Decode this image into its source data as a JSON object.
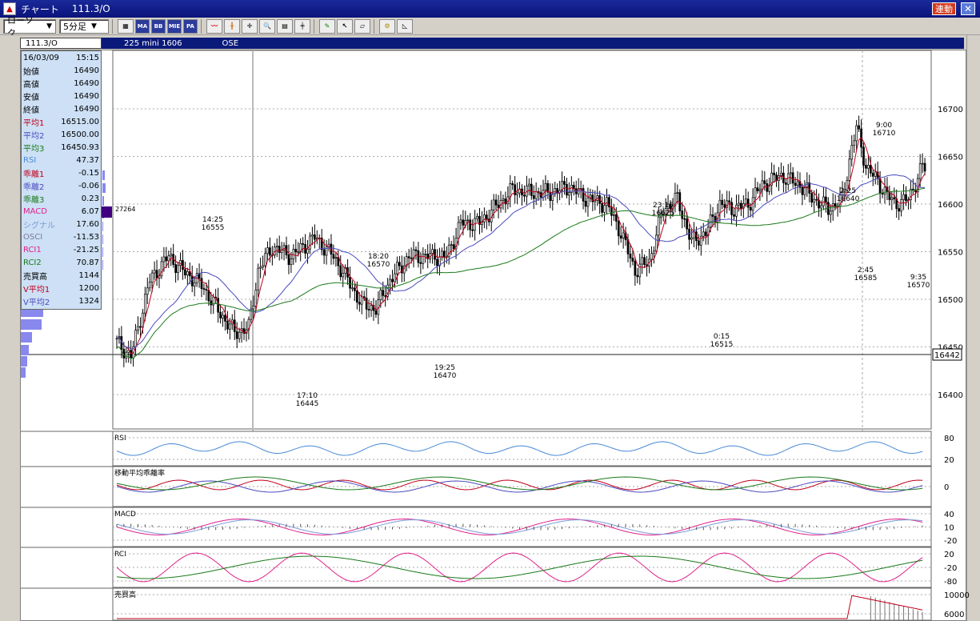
{
  "window": {
    "title": "チャート",
    "symbol": "111.3/O",
    "link_button": "連動",
    "close_icon": "close-icon"
  },
  "toolbar": {
    "chart_type": "ローソク",
    "interval": "5分足",
    "tool_icons": [
      "grid-icon",
      "MA",
      "BB",
      "MIE",
      "PA",
      "line-chart-icon",
      "candle-icon",
      "crosshair-icon",
      "zoom-icon",
      "print-icon",
      "bar-icon",
      "pen-icon",
      "cursor-icon",
      "eraser-icon",
      "settings-icon",
      "draw-icon"
    ]
  },
  "info": {
    "code": "111.3/O",
    "product": "225 mini 1606",
    "exchange": "OSE"
  },
  "panel": {
    "date": "16/03/09",
    "time": "15:15",
    "rows": [
      {
        "label": "始値",
        "value": "16490",
        "color": "#000000"
      },
      {
        "label": "高値",
        "value": "16490",
        "color": "#000000"
      },
      {
        "label": "安値",
        "value": "16490",
        "color": "#000000"
      },
      {
        "label": "終値",
        "value": "16490",
        "color": "#000000"
      },
      {
        "label": "平均1",
        "value": "16515.00",
        "color": "#c0001a"
      },
      {
        "label": "平均2",
        "value": "16500.00",
        "color": "#4a4ac0"
      },
      {
        "label": "平均3",
        "value": "16450.93",
        "color": "#1a7a1a"
      },
      {
        "label": "RSI",
        "value": "47.37",
        "color": "#4a8ad8"
      },
      {
        "label": "乖離1",
        "value": "-0.15",
        "color": "#c0001a"
      },
      {
        "label": "乖離2",
        "value": "-0.06",
        "color": "#4a4ac0"
      },
      {
        "label": "乖離3",
        "value": "0.23",
        "color": "#1a7a1a"
      },
      {
        "label": "MACD",
        "value": "6.07",
        "color": "#e0208a"
      },
      {
        "label": "シグナル",
        "value": "17.60",
        "color": "#7a9ad8"
      },
      {
        "label": "OSCI",
        "value": "-11.53",
        "color": "#7a7a9a"
      },
      {
        "label": "RCI1",
        "value": "-21.25",
        "color": "#e0208a"
      },
      {
        "label": "RCI2",
        "value": "70.87",
        "color": "#1a7a1a"
      },
      {
        "label": "売買高",
        "value": "1144",
        "color": "#000000"
      },
      {
        "label": "V平均1",
        "value": "1200",
        "color": "#c0001a"
      },
      {
        "label": "V平均2",
        "value": "1324",
        "color": "#4a4ac0"
      }
    ]
  },
  "main_chart": {
    "y_ticks": [
      "16700",
      "16650",
      "16600",
      "16550",
      "16500",
      "16450",
      "16400"
    ],
    "current_price": "16442",
    "volume_profile_label": "27264",
    "annotations": [
      {
        "time": "14:25",
        "price": "16555"
      },
      {
        "time": "17:10",
        "price": "16445"
      },
      {
        "time": "18:20",
        "price": "16570"
      },
      {
        "time": "19:25",
        "price": "16470"
      },
      {
        "time": "23:15",
        "price": "16625"
      },
      {
        "time": "0:15",
        "price": "16515"
      },
      {
        "time": "2:25",
        "price": "16640"
      },
      {
        "time": "2:45",
        "price": "16585"
      },
      {
        "time": "9:00",
        "price": "16710"
      },
      {
        "time": "9:35",
        "price": "16570"
      }
    ]
  },
  "subcharts": {
    "rsi": {
      "title": "RSI",
      "ticks": [
        "80",
        "20"
      ]
    },
    "deviation": {
      "title": "移動平均乖離率",
      "ticks": [
        "0"
      ]
    },
    "macd": {
      "title": "MACD",
      "ticks": [
        "40",
        "10",
        "-20"
      ]
    },
    "rci": {
      "title": "RCI",
      "ticks": [
        "20",
        "-20",
        "-80"
      ]
    },
    "volume": {
      "title": "売買高",
      "ticks": [
        "10000",
        "6000"
      ]
    }
  }
}
